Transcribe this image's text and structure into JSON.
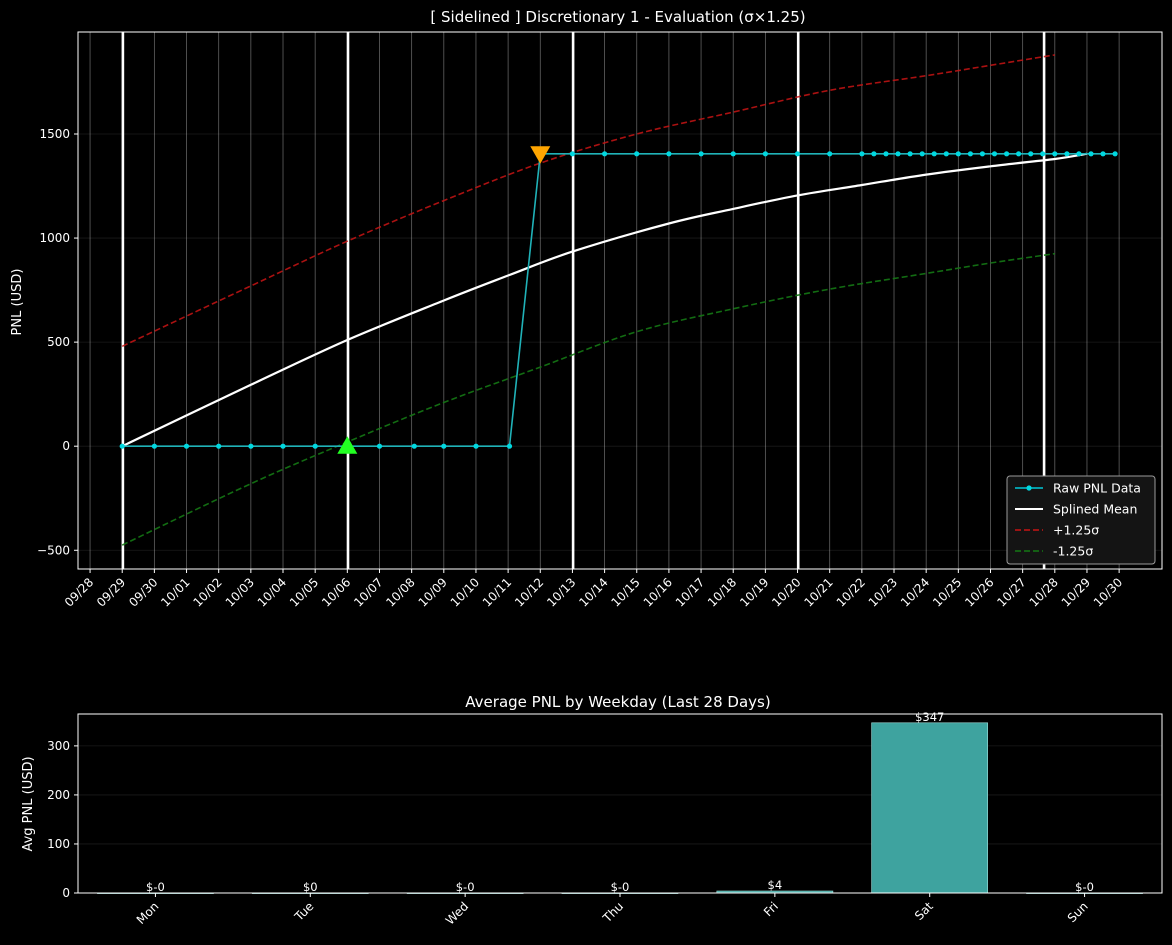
{
  "chart_data": [
    {
      "type": "line",
      "title": "[ Sidelined ] Discretionary 1 - Evaluation (σ×1.25)",
      "ylabel": "PNL (USD)",
      "xlabel": "",
      "ylim": [
        -590,
        1990
      ],
      "xlim": [
        "2025-09-27 15:00",
        "2025-10-31 08:00"
      ],
      "yticks": [
        -500,
        0,
        500,
        1000,
        1500
      ],
      "xtick_labels": [
        "09/28",
        "09/29",
        "09/30",
        "10/01",
        "10/02",
        "10/03",
        "10/04",
        "10/05",
        "10/06",
        "10/07",
        "10/08",
        "10/09",
        "10/10",
        "10/11",
        "10/12",
        "10/13",
        "10/14",
        "10/15",
        "10/16",
        "10/17",
        "10/18",
        "10/19",
        "10/20",
        "10/21",
        "10/22",
        "10/23",
        "10/24",
        "10/25",
        "10/26",
        "10/27",
        "10/28",
        "10/29",
        "10/30"
      ],
      "week_lines": [
        "2025-09-29 00:30",
        "2025-10-06 00:30",
        "2025-10-13 00:30",
        "2025-10-20 00:30",
        "2025-10-27 16:00"
      ],
      "grid": true,
      "legend": {
        "position": "lower-right",
        "entries": [
          {
            "label": "Raw PNL Data",
            "color": "#00c8d8",
            "style": "line-marker"
          },
          {
            "label": "Splined Mean",
            "color": "#ffffff",
            "style": "solid"
          },
          {
            "label": "+1.25σ",
            "color": "#c81414",
            "style": "dashed"
          },
          {
            "label": "-1.25σ",
            "color": "#147814",
            "style": "dashed"
          }
        ]
      },
      "series": [
        {
          "name": "Raw PNL Data",
          "color": "#20b2b8",
          "marker_color": "#00d8e0",
          "points": [
            [
              "2025-09-29 00:00",
              0
            ],
            [
              "2025-09-30 00:00",
              0
            ],
            [
              "2025-10-01 00:00",
              0
            ],
            [
              "2025-10-02 00:00",
              0
            ],
            [
              "2025-10-03 00:00",
              0
            ],
            [
              "2025-10-04 00:00",
              0
            ],
            [
              "2025-10-05 00:00",
              0
            ],
            [
              "2025-10-06 00:00",
              0
            ],
            [
              "2025-10-07 00:00",
              0
            ],
            [
              "2025-10-08 02:00",
              0
            ],
            [
              "2025-10-09 00:00",
              0
            ],
            [
              "2025-10-10 00:00",
              0
            ],
            [
              "2025-10-11 01:00",
              0
            ],
            [
              "2025-10-12 00:00",
              1405
            ],
            [
              "2025-10-13 00:00",
              1405
            ],
            [
              "2025-10-14 00:00",
              1405
            ],
            [
              "2025-10-15 00:00",
              1405
            ],
            [
              "2025-10-16 00:00",
              1405
            ],
            [
              "2025-10-17 00:00",
              1405
            ],
            [
              "2025-10-18 00:00",
              1405
            ],
            [
              "2025-10-19 00:00",
              1405
            ],
            [
              "2025-10-20 00:00",
              1405
            ],
            [
              "2025-10-21 00:00",
              1405
            ],
            [
              "2025-10-22 00:00",
              1405
            ],
            [
              "2025-10-22 09:00",
              1405
            ],
            [
              "2025-10-22 18:00",
              1405
            ],
            [
              "2025-10-23 03:00",
              1405
            ],
            [
              "2025-10-23 12:00",
              1405
            ],
            [
              "2025-10-23 21:00",
              1405
            ],
            [
              "2025-10-24 06:00",
              1405
            ],
            [
              "2025-10-24 15:00",
              1405
            ],
            [
              "2025-10-25 00:00",
              1405
            ],
            [
              "2025-10-25 09:00",
              1405
            ],
            [
              "2025-10-25 18:00",
              1405
            ],
            [
              "2025-10-26 03:00",
              1405
            ],
            [
              "2025-10-26 12:00",
              1405
            ],
            [
              "2025-10-26 21:00",
              1405
            ],
            [
              "2025-10-27 06:00",
              1405
            ],
            [
              "2025-10-27 15:00",
              1405
            ],
            [
              "2025-10-28 00:00",
              1405
            ],
            [
              "2025-10-28 09:00",
              1405
            ],
            [
              "2025-10-28 18:00",
              1405
            ],
            [
              "2025-10-29 03:00",
              1405
            ],
            [
              "2025-10-29 12:00",
              1405
            ],
            [
              "2025-10-29 21:00",
              1405
            ]
          ]
        },
        {
          "name": "Splined Mean",
          "color": "#ffffff",
          "points": [
            [
              "2025-09-29 00:00",
              0
            ],
            [
              "2025-10-03 00:00",
              295
            ],
            [
              "2025-10-06 00:00",
              510
            ],
            [
              "2025-10-09 00:00",
              700
            ],
            [
              "2025-10-11 00:00",
              820
            ],
            [
              "2025-10-13 00:00",
              935
            ],
            [
              "2025-10-16 00:00",
              1070
            ],
            [
              "2025-10-18 00:00",
              1140
            ],
            [
              "2025-10-20 00:00",
              1205
            ],
            [
              "2025-10-22 00:00",
              1255
            ],
            [
              "2025-10-24 00:00",
              1305
            ],
            [
              "2025-10-26 00:00",
              1345
            ],
            [
              "2025-10-28 00:00",
              1380
            ],
            [
              "2025-10-29 00:00",
              1405
            ]
          ]
        },
        {
          "name": "+1.25σ",
          "color": "#c81414",
          "points": [
            [
              "2025-09-29 00:00",
              480
            ],
            [
              "2025-10-03 00:00",
              770
            ],
            [
              "2025-10-06 00:00",
              985
            ],
            [
              "2025-10-09 00:00",
              1180
            ],
            [
              "2025-10-12 00:00",
              1360
            ],
            [
              "2025-10-15 00:00",
              1500
            ],
            [
              "2025-10-18 00:00",
              1605
            ],
            [
              "2025-10-21 00:00",
              1710
            ],
            [
              "2025-10-24 00:00",
              1780
            ],
            [
              "2025-10-26 00:00",
              1830
            ],
            [
              "2025-10-28 00:00",
              1880
            ]
          ]
        },
        {
          "name": "-1.25σ",
          "color": "#147814",
          "points": [
            [
              "2025-09-29 00:00",
              -475
            ],
            [
              "2025-10-03 00:00",
              -180
            ],
            [
              "2025-10-06 00:00",
              20
            ],
            [
              "2025-10-09 00:00",
              210
            ],
            [
              "2025-10-12 00:00",
              380
            ],
            [
              "2025-10-15 00:00",
              550
            ],
            [
              "2025-10-18 00:00",
              660
            ],
            [
              "2025-10-21 00:00",
              755
            ],
            [
              "2025-10-24 00:00",
              830
            ],
            [
              "2025-10-26 00:00",
              880
            ],
            [
              "2025-10-28 00:00",
              925
            ]
          ]
        }
      ],
      "markers": [
        {
          "kind": "triangle-up",
          "color": "#22ff22",
          "x": "2025-10-06 00:00",
          "y": 0
        },
        {
          "kind": "triangle-down",
          "color": "#ffa500",
          "x": "2025-10-12 00:00",
          "y": 1405
        }
      ]
    },
    {
      "type": "bar",
      "title": "Average PNL by Weekday (Last 28 Days)",
      "ylabel": "Avg PNL (USD)",
      "xlabel": "",
      "ylim": [
        0,
        365
      ],
      "yticks": [
        0,
        100,
        200,
        300
      ],
      "grid": true,
      "bar_color": "#3ea39f",
      "categories": [
        "Mon",
        "Tue",
        "Wed",
        "Thu",
        "Fri",
        "Sat",
        "Sun"
      ],
      "values": [
        -0.3,
        0,
        -0.3,
        -0.3,
        4,
        347,
        -0.3
      ],
      "value_labels": [
        "$-0",
        "$0",
        "$-0",
        "$-0",
        "$4",
        "$347",
        "$-0"
      ]
    }
  ]
}
